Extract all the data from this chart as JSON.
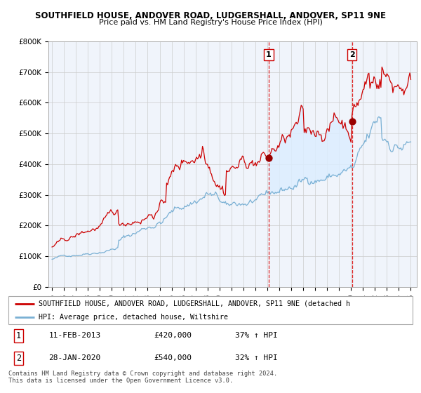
{
  "title": "SOUTHFIELD HOUSE, ANDOVER ROAD, LUDGERSHALL, ANDOVER, SP11 9NE",
  "subtitle": "Price paid vs. HM Land Registry's House Price Index (HPI)",
  "background_color": "#ffffff",
  "grid_color": "#cccccc",
  "ylim": [
    0,
    800000
  ],
  "yticks": [
    0,
    100000,
    200000,
    300000,
    400000,
    500000,
    600000,
    700000,
    800000
  ],
  "ytick_labels": [
    "£0",
    "£100K",
    "£200K",
    "£300K",
    "£400K",
    "£500K",
    "£600K",
    "£700K",
    "£800K"
  ],
  "sale1_date": 2013.12,
  "sale1_price": 420000,
  "sale1_label": "1",
  "sale2_date": 2020.08,
  "sale2_price": 540000,
  "sale2_label": "2",
  "hpi_color": "#7ab0d4",
  "price_color": "#cc0000",
  "vline_color": "#dd2222",
  "sale_dot_color": "#990000",
  "shade_color": "#ddeeff",
  "legend_line1": "SOUTHFIELD HOUSE, ANDOVER ROAD, LUDGERSHALL, ANDOVER, SP11 9NE (detached h",
  "legend_line2": "HPI: Average price, detached house, Wiltshire",
  "table_row1": [
    "1",
    "11-FEB-2013",
    "£420,000",
    "37% ↑ HPI"
  ],
  "table_row2": [
    "2",
    "28-JAN-2020",
    "£540,000",
    "32% ↑ HPI"
  ],
  "footer": "Contains HM Land Registry data © Crown copyright and database right 2024.\nThis data is licensed under the Open Government Licence v3.0."
}
